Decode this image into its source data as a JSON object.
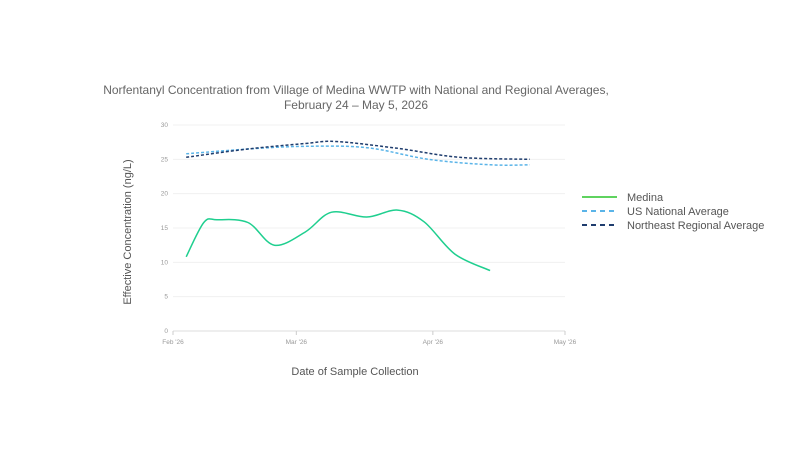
{
  "chart_data": {
    "type": "line",
    "title": "Norfentanyl Concentration from Village of Medina WWTP with National and Regional Averages,",
    "subtitle": "February 24 – May 5, 2026",
    "xlabel": "Date of Sample Collection",
    "ylabel": "Effective Concentration (ng/L)",
    "ylim": [
      0,
      30
    ],
    "yticks": [
      0,
      5,
      10,
      15,
      20,
      25,
      30
    ],
    "xticks": [
      {
        "date": "2026-02-01",
        "label": "Feb '26"
      },
      {
        "date": "2026-03-01",
        "label": "Mar '26"
      },
      {
        "date": "2026-04-01",
        "label": "Apr '26"
      },
      {
        "date": "2026-05-01",
        "label": "May '26"
      }
    ],
    "xlim": [
      "2026-02-01",
      "2026-05-01"
    ],
    "grid": true,
    "legend_position": "right",
    "series": [
      {
        "name": "Medina",
        "color": "#1fcf8f",
        "legend_color": "#5fd35f",
        "dash": "solid",
        "x": [
          "2026-02-04",
          "2026-02-08",
          "2026-02-11",
          "2026-02-18",
          "2026-02-24",
          "2026-03-03",
          "2026-03-09",
          "2026-03-17",
          "2026-03-24",
          "2026-03-30",
          "2026-04-06",
          "2026-04-14"
        ],
        "y": [
          10.8,
          15.8,
          16.2,
          15.8,
          12.5,
          14.4,
          17.3,
          16.6,
          17.6,
          15.9,
          11.2,
          8.8
        ]
      },
      {
        "name": "US National Average",
        "color": "#5ab4e8",
        "dash": "dashed",
        "x": [
          "2026-02-04",
          "2026-02-18",
          "2026-03-03",
          "2026-03-17",
          "2026-03-31",
          "2026-04-14",
          "2026-04-23"
        ],
        "y": [
          25.8,
          26.5,
          26.9,
          26.7,
          25.0,
          24.2,
          24.2
        ]
      },
      {
        "name": "Northeast Regional Average",
        "color": "#1f3d6e",
        "dash": "dashed",
        "x": [
          "2026-02-04",
          "2026-02-18",
          "2026-03-03",
          "2026-03-10",
          "2026-03-24",
          "2026-04-07",
          "2026-04-23"
        ],
        "y": [
          25.3,
          26.5,
          27.3,
          27.6,
          26.6,
          25.3,
          25.0
        ]
      }
    ]
  }
}
